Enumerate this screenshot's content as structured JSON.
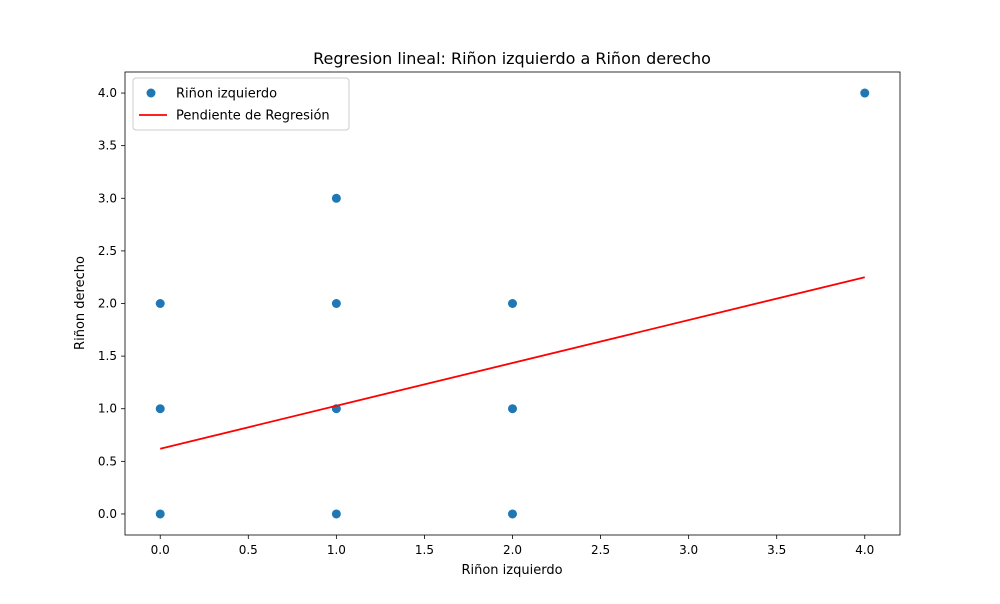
{
  "chart_data": {
    "type": "scatter",
    "title": "Regresion lineal: Riñon izquierdo a Riñon derecho",
    "xlabel": "Riñon izquierdo",
    "ylabel": "Riñon derecho",
    "xlim": [
      -0.2,
      4.2
    ],
    "ylim": [
      -0.2,
      4.2
    ],
    "xticks": [
      0.0,
      0.5,
      1.0,
      1.5,
      2.0,
      2.5,
      3.0,
      3.5,
      4.0
    ],
    "yticks": [
      0.0,
      0.5,
      1.0,
      1.5,
      2.0,
      2.5,
      3.0,
      3.5,
      4.0
    ],
    "xtick_labels": [
      "0.0",
      "0.5",
      "1.0",
      "1.5",
      "2.0",
      "2.5",
      "3.0",
      "3.5",
      "4.0"
    ],
    "ytick_labels": [
      "0.0",
      "0.5",
      "1.0",
      "1.5",
      "2.0",
      "2.5",
      "3.0",
      "3.5",
      "4.0"
    ],
    "grid": false,
    "legend_position": "top-left",
    "series": [
      {
        "name": "Riñon izquierdo",
        "kind": "scatter",
        "color": "#1f77b4",
        "points": [
          [
            0,
            0
          ],
          [
            0,
            1
          ],
          [
            0,
            2
          ],
          [
            1,
            0
          ],
          [
            1,
            1
          ],
          [
            1,
            2
          ],
          [
            1,
            3
          ],
          [
            2,
            0
          ],
          [
            2,
            1
          ],
          [
            2,
            2
          ],
          [
            4,
            4
          ]
        ]
      },
      {
        "name": "Pendiente de Regresión",
        "kind": "line",
        "color": "#ff0000",
        "points": [
          [
            0,
            0.62
          ],
          [
            4,
            2.25
          ]
        ]
      }
    ]
  }
}
